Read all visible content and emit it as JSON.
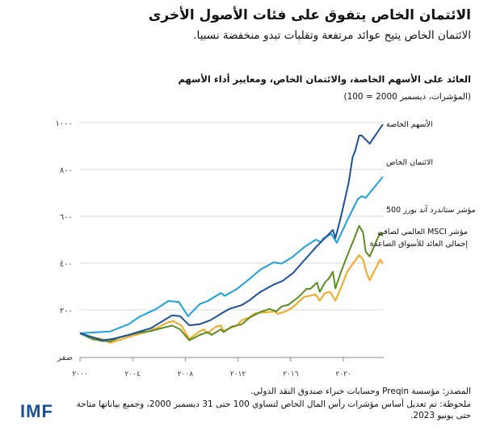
{
  "header": {
    "title": "الائتمان الخاص يتفوق على فئات الأصول الأخرى",
    "subtitle": "الائتمان الخاص يتيح عوائد مرتفعة وتقلبات تبدو منخفضة نسبيا."
  },
  "chart_data": {
    "type": "line",
    "title": "العائد على الأسهم الخاصة، والائتمان الخاص، ومعايير أداء الأسهم",
    "subtitle": "(المؤشرات، ديسمبر 2000 = 100)",
    "xlim": [
      2000,
      2023
    ],
    "ylim": [
      0,
      1000
    ],
    "grid": true,
    "x_ticks": [
      2000,
      2004,
      2008,
      2012,
      2016,
      2020
    ],
    "x_tick_labels": [
      "٢٠٠٠",
      "٢٠٠٤",
      "٢٠٠٨",
      "٢٠١٢",
      "٢٠١٦",
      "٢٠٢٠"
    ],
    "y_ticks": [
      0,
      200,
      400,
      600,
      800,
      1000
    ],
    "y_tick_labels": [
      "صفر",
      "٢٠٠",
      "٤٠٠",
      "٦٠٠",
      "٨٠٠",
      "١٠٠٠"
    ],
    "legend": "inline-right",
    "series": [
      {
        "name": "الأسهم الخاصة",
        "color": "#1d4f9b",
        "points": [
          [
            2000,
            100
          ],
          [
            2001.7,
            70
          ],
          [
            2002.5,
            76
          ],
          [
            2003.7,
            93
          ],
          [
            2005.4,
            122
          ],
          [
            2007,
            177
          ],
          [
            2007.6,
            173
          ],
          [
            2008.3,
            134
          ],
          [
            2009.1,
            139
          ],
          [
            2009.9,
            156
          ],
          [
            2010.7,
            183
          ],
          [
            2011.3,
            203
          ],
          [
            2012.3,
            221
          ],
          [
            2012.9,
            242
          ],
          [
            2013.3,
            260
          ],
          [
            2013.7,
            277
          ],
          [
            2014.7,
            308
          ],
          [
            2015.4,
            324
          ],
          [
            2016.2,
            359
          ],
          [
            2017,
            410
          ],
          [
            2017.9,
            467
          ],
          [
            2018.8,
            518
          ],
          [
            2019.2,
            541
          ],
          [
            2019.4,
            507
          ],
          [
            2019.8,
            593
          ],
          [
            2020.4,
            742
          ],
          [
            2020.7,
            852
          ],
          [
            2020.9,
            880
          ],
          [
            2021.2,
            945
          ],
          [
            2021.4,
            945
          ],
          [
            2022,
            910
          ],
          [
            2023,
            993
          ]
        ]
      },
      {
        "name": "الائتمان الخاص",
        "color": "#1ba1e2",
        "points": [
          [
            2000,
            100
          ],
          [
            2002.3,
            108
          ],
          [
            2003.7,
            139
          ],
          [
            2004.5,
            170
          ],
          [
            2005.8,
            204
          ],
          [
            2006.7,
            238
          ],
          [
            2007.5,
            234
          ],
          [
            2008.2,
            173
          ],
          [
            2009.1,
            225
          ],
          [
            2009.7,
            238
          ],
          [
            2010.7,
            272
          ],
          [
            2011,
            260
          ],
          [
            2011.9,
            289
          ],
          [
            2012.8,
            329
          ],
          [
            2013.7,
            372
          ],
          [
            2014.7,
            403
          ],
          [
            2015.3,
            398
          ],
          [
            2016.1,
            424
          ],
          [
            2017,
            467
          ],
          [
            2017.9,
            500
          ],
          [
            2018.3,
            490
          ],
          [
            2018.5,
            507
          ],
          [
            2019.1,
            524
          ],
          [
            2019.5,
            487
          ],
          [
            2020.3,
            583
          ],
          [
            2021.1,
            673
          ],
          [
            2021.4,
            686
          ],
          [
            2021.7,
            679
          ],
          [
            2023,
            769
          ]
        ]
      },
      {
        "name": "مؤشر ستاندرد آند بورز 500",
        "color": "#5b8d22",
        "points": [
          [
            2000,
            100
          ],
          [
            2000.9,
            76
          ],
          [
            2001.7,
            67
          ],
          [
            2002.3,
            66
          ],
          [
            2003.1,
            84
          ],
          [
            2004.2,
            100
          ],
          [
            2005.4,
            110
          ],
          [
            2006.2,
            122
          ],
          [
            2007,
            133
          ],
          [
            2007.6,
            117
          ],
          [
            2008.3,
            70
          ],
          [
            2009.1,
            93
          ],
          [
            2009.7,
            105
          ],
          [
            2010,
            93
          ],
          [
            2010.7,
            117
          ],
          [
            2010.9,
            105
          ],
          [
            2011.5,
            128
          ],
          [
            2012.3,
            139
          ],
          [
            2012.9,
            168
          ],
          [
            2013.7,
            191
          ],
          [
            2014.4,
            204
          ],
          [
            2014.9,
            193
          ],
          [
            2015.3,
            214
          ],
          [
            2015.8,
            221
          ],
          [
            2016.6,
            255
          ],
          [
            2017.2,
            290
          ],
          [
            2017.5,
            290
          ],
          [
            2018,
            317
          ],
          [
            2018.2,
            277
          ],
          [
            2018.6,
            317
          ],
          [
            2018.9,
            334
          ],
          [
            2019.2,
            363
          ],
          [
            2019.4,
            292
          ],
          [
            2019.8,
            359
          ],
          [
            2020.3,
            432
          ],
          [
            2020.8,
            501
          ],
          [
            2021.2,
            559
          ],
          [
            2021.5,
            531
          ],
          [
            2021.7,
            449
          ],
          [
            2022,
            428
          ],
          [
            2022.8,
            531
          ],
          [
            2023,
            515
          ]
        ]
      },
      {
        "name": "مؤشر MSCI العالمي لصافي إجمالي العائد للأسواق الصاعدة",
        "color": "#f5a81c",
        "points": [
          [
            2000,
            100
          ],
          [
            2000.7,
            86
          ],
          [
            2001.7,
            76
          ],
          [
            2002.3,
            59
          ],
          [
            2002.9,
            70
          ],
          [
            2003.7,
            85
          ],
          [
            2005,
            105
          ],
          [
            2005.8,
            122
          ],
          [
            2006.6,
            145
          ],
          [
            2007.1,
            152
          ],
          [
            2007.7,
            133
          ],
          [
            2008.3,
            76
          ],
          [
            2009,
            105
          ],
          [
            2009.4,
            117
          ],
          [
            2009.7,
            100
          ],
          [
            2010.3,
            128
          ],
          [
            2010.7,
            133
          ],
          [
            2010.9,
            110
          ],
          [
            2011.9,
            133
          ],
          [
            2012.3,
            156
          ],
          [
            2012.9,
            169
          ],
          [
            2013.3,
            186
          ],
          [
            2014.8,
            193
          ],
          [
            2015,
            183
          ],
          [
            2015.6,
            193
          ],
          [
            2016.1,
            208
          ],
          [
            2017,
            255
          ],
          [
            2017.4,
            260
          ],
          [
            2017.9,
            266
          ],
          [
            2018.2,
            239
          ],
          [
            2018.6,
            272
          ],
          [
            2019,
            277
          ],
          [
            2019.4,
            239
          ],
          [
            2019.9,
            307
          ],
          [
            2020.3,
            363
          ],
          [
            2020.8,
            403
          ],
          [
            2021.2,
            434
          ],
          [
            2021.5,
            415
          ],
          [
            2021.8,
            352
          ],
          [
            2022,
            327
          ],
          [
            2022.8,
            415
          ],
          [
            2023,
            398
          ]
        ]
      }
    ],
    "series_labels": [
      "الأسهم الخاصة",
      "الائتمان الخاص",
      "مؤشر ستاندرد آند بورز 500",
      "مؤشر MSCI العالمي لصافي",
      "إجمالي العائد للأسواق الصاعدة"
    ]
  },
  "footer": {
    "source": "المصدر:  مؤسسة Preqin وحسابات خبراء صندوق النقد الدولي.",
    "note": "ملحوظة: تم تعديل أساس مؤشرات رأس المال الخاص لتساوي 100 حتى 31 ديسمبر 2000، وجميع بياناتها متاحة حتى يونيو 2023.",
    "logo": "IMF",
    "logo_color": "#1b4f9c"
  }
}
